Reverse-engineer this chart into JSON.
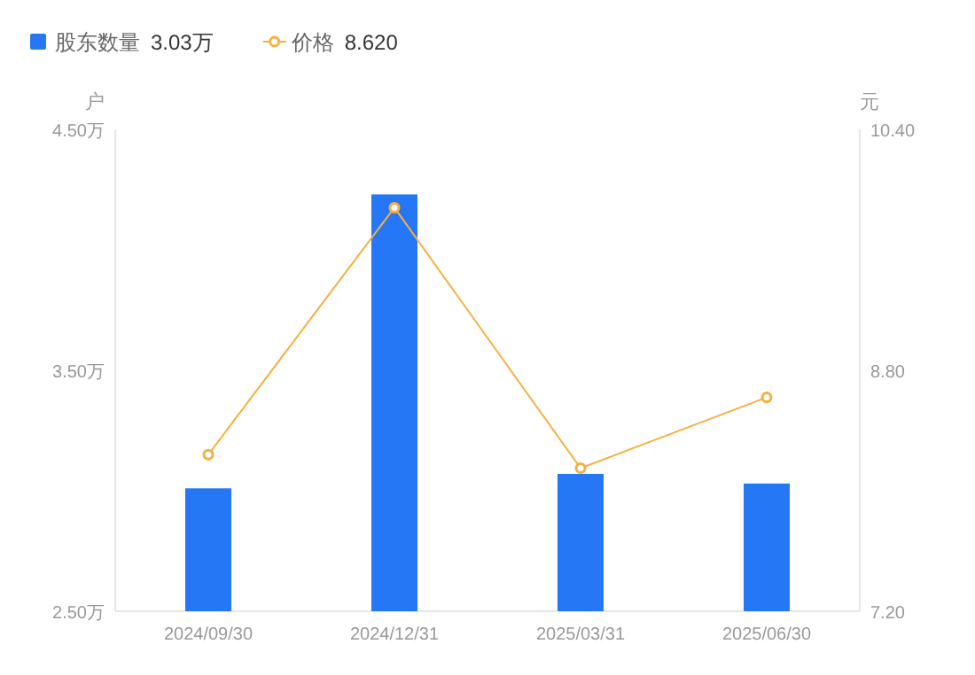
{
  "chart_data": {
    "type": "bar",
    "categories": [
      "2024/09/30",
      "2024/12/31",
      "2025/03/31",
      "2025/06/30"
    ],
    "series": [
      {
        "name": "股东数量",
        "color": "#2677f6",
        "values": [
          3.01,
          4.23,
          3.07,
          3.03
        ]
      },
      {
        "name": "价格",
        "type": "line",
        "axis": "y2",
        "color": "#f5b042",
        "values": [
          8.24,
          9.88,
          8.15,
          8.62
        ]
      }
    ],
    "ylabel": "户",
    "y2label": "元",
    "ylim": [
      2.5,
      4.5
    ],
    "yticks": [
      {
        "value": 2.5,
        "label": "2.50万"
      },
      {
        "value": 3.5,
        "label": "3.50万"
      },
      {
        "value": 4.5,
        "label": "4.50万"
      }
    ],
    "y2lim": [
      7.2,
      10.4
    ],
    "y2ticks": [
      {
        "value": 7.2,
        "label": "7.20"
      },
      {
        "value": 8.8,
        "label": "8.80"
      },
      {
        "value": 10.4,
        "label": "10.40"
      }
    ],
    "annotations": [
      "3.03万",
      "8.620"
    ],
    "legend": "top left",
    "marker": "circle",
    "grid": false
  }
}
